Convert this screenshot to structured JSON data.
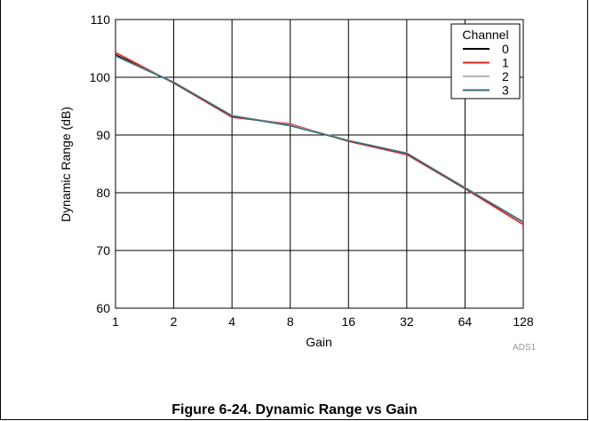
{
  "chart_data": {
    "type": "line",
    "xlabel": "Gain",
    "ylabel": "Dynamic Range (dB)",
    "x_categories": [
      "1",
      "2",
      "4",
      "8",
      "16",
      "32",
      "64",
      "128"
    ],
    "yticks": [
      "60",
      "70",
      "80",
      "90",
      "100",
      "110"
    ],
    "ylim": [
      60,
      110
    ],
    "x_scale": "log2",
    "grid": true,
    "legend_title": "Channel",
    "legend_position": "top-right",
    "series": [
      {
        "name": "0",
        "color": "#000000",
        "values": [
          103.9,
          99.1,
          93.3,
          91.8,
          89.0,
          86.8,
          80.9,
          74.9
        ]
      },
      {
        "name": "1",
        "color": "#e8201c",
        "values": [
          104.3,
          99.0,
          93.1,
          91.9,
          88.9,
          86.6,
          80.7,
          74.5
        ]
      },
      {
        "name": "2",
        "color": "#b4b4b4",
        "values": [
          103.7,
          99.2,
          93.4,
          91.7,
          89.1,
          86.9,
          80.9,
          75.0
        ]
      },
      {
        "name": "3",
        "color": "#336977",
        "values": [
          103.7,
          99.1,
          93.3,
          91.6,
          89.0,
          86.8,
          80.8,
          74.9
        ]
      }
    ]
  },
  "watermark": "ADS1",
  "caption": "Figure 6-24. Dynamic Range vs Gain"
}
